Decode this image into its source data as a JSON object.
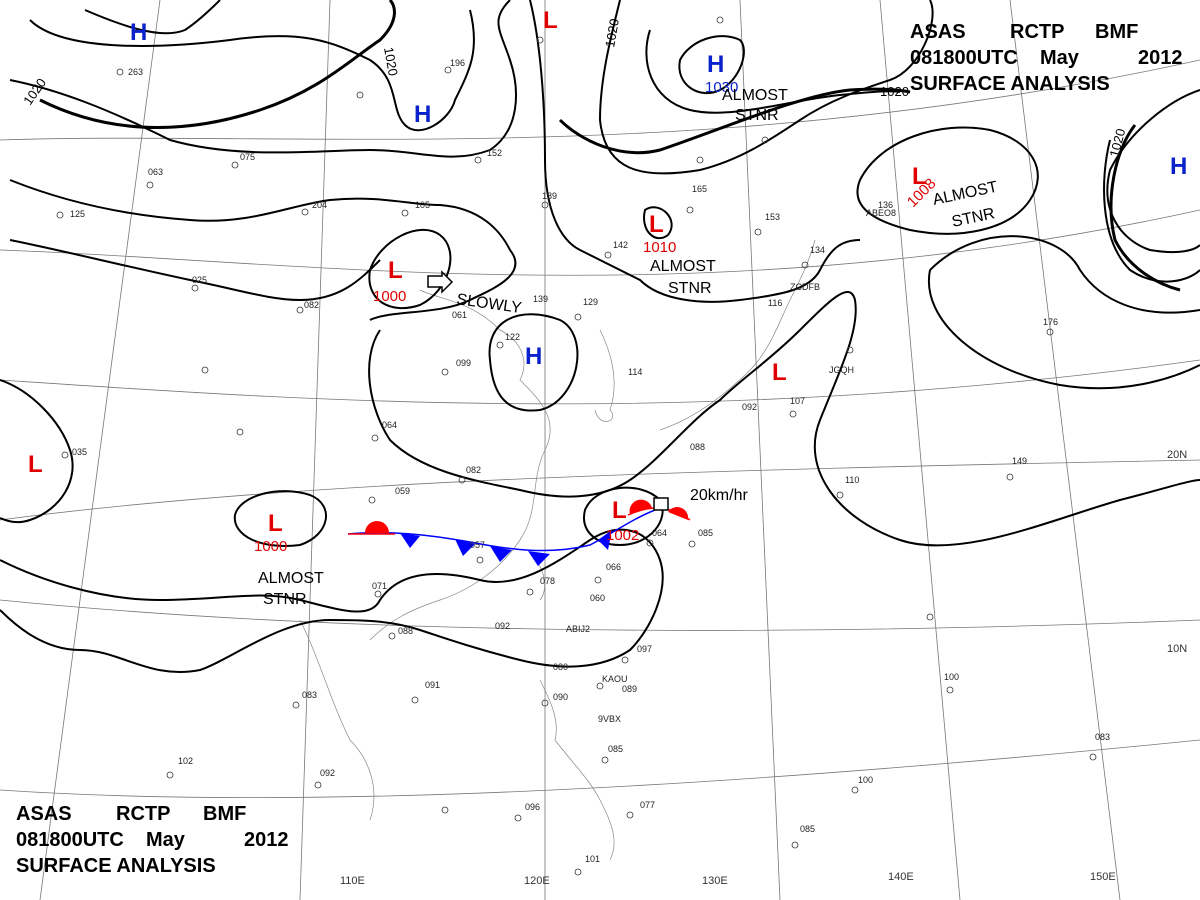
{
  "title": {
    "line1": [
      "ASAS",
      "RCTP",
      "BMF"
    ],
    "line2": [
      "081800UTC",
      "May",
      "2012"
    ],
    "line3": "SURFACE ANALYSIS"
  },
  "colors": {
    "high": "#0a22cc",
    "low": "#e00000",
    "cold_front": "#0000ff",
    "warm_front": "#ff0000",
    "isobar": "#000000",
    "grid": "#666666"
  },
  "longitude_labels": [
    "110E",
    "120E",
    "130E",
    "140E",
    "150E"
  ],
  "latitude_labels": [
    "20N",
    "10N"
  ],
  "isobar_labels": [
    "1020",
    "1020",
    "1020",
    "1020",
    "1020"
  ],
  "pressure_centers": [
    {
      "symbol": "H",
      "type": "high"
    },
    {
      "symbol": "H",
      "type": "high"
    },
    {
      "symbol": "H",
      "type": "high",
      "value": "1030"
    },
    {
      "symbol": "H",
      "type": "high"
    },
    {
      "symbol": "H",
      "type": "high"
    },
    {
      "symbol": "L",
      "type": "low"
    },
    {
      "symbol": "L",
      "type": "low",
      "value": "1010"
    },
    {
      "symbol": "L",
      "type": "low",
      "value": "1008"
    },
    {
      "symbol": "L",
      "type": "low",
      "value": "1000"
    },
    {
      "symbol": "L",
      "type": "low"
    },
    {
      "symbol": "L",
      "type": "low",
      "value": "1000"
    },
    {
      "symbol": "L",
      "type": "low",
      "value": "1002"
    },
    {
      "symbol": "L",
      "type": "low"
    }
  ],
  "annotations": [
    {
      "lines": [
        "ALMOST",
        "STNR"
      ]
    },
    {
      "lines": [
        "ALMOST",
        "STNR"
      ]
    },
    {
      "lines": [
        "ALMOST",
        "STNR"
      ]
    },
    {
      "lines": [
        "ALMOST",
        "STNR"
      ]
    },
    {
      "lines": [
        "SLOWLY"
      ]
    },
    {
      "lines": [
        "20km/hr"
      ]
    }
  ],
  "station_ids": [
    "ABEO8",
    "ZCDFB",
    "JGQH",
    "KAOU",
    "9VBX",
    "ABIJ2"
  ],
  "station_values": [
    "196",
    "263",
    "204",
    "105",
    "152",
    "189",
    "142",
    "129",
    "139",
    "122",
    "099",
    "064",
    "082",
    "059",
    "057",
    "071",
    "088",
    "092",
    "078",
    "060",
    "066",
    "064",
    "085",
    "080",
    "090",
    "091",
    "083",
    "102",
    "092",
    "096",
    "101",
    "077",
    "085",
    "089",
    "097",
    "107",
    "110",
    "100",
    "134",
    "116",
    "136",
    "176",
    "149",
    "153",
    "165",
    "075",
    "114",
    "061",
    "088",
    "092",
    "125",
    "025",
    "063",
    "082",
    "100",
    "083",
    "085",
    "035"
  ]
}
